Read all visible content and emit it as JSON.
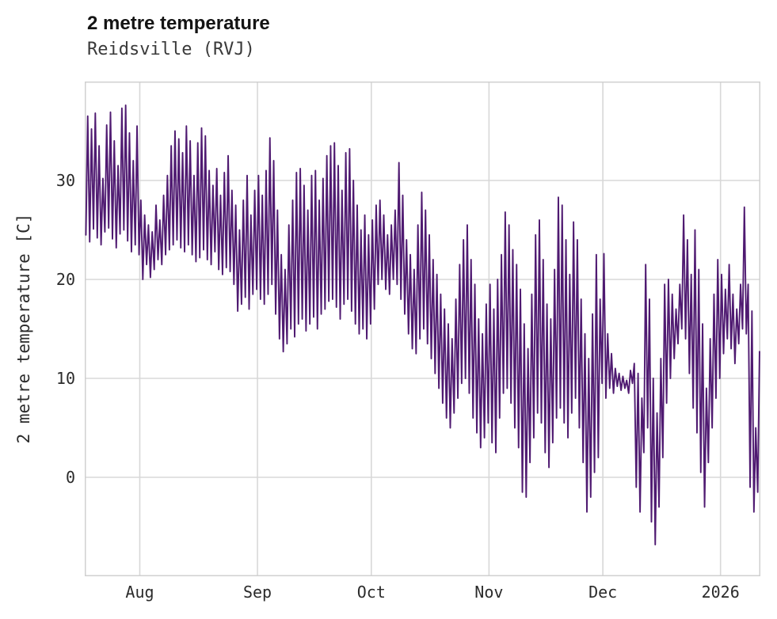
{
  "header": {
    "title": "2 metre temperature",
    "subtitle": "Reidsville (RVJ)"
  },
  "chart_data": {
    "type": "line",
    "title": "2 metre temperature",
    "subtitle": "Reidsville (RVJ)",
    "xlabel": "",
    "ylabel": "2 metre temperature [C]",
    "ylim": [
      -10,
      40
    ],
    "yticks": [
      0,
      10,
      20,
      30
    ],
    "grid": true,
    "legend": false,
    "line_color": "#4f1a71",
    "grid_color": "#d8d8d8",
    "border_color": "#d0d0d0",
    "x_start": "mid-July",
    "x_end": "mid-January 2026",
    "days_total": 178,
    "xticks": [
      {
        "label": "Aug",
        "day": 14
      },
      {
        "label": "Sep",
        "day": 45
      },
      {
        "label": "Oct",
        "day": 75
      },
      {
        "label": "Nov",
        "day": 106
      },
      {
        "label": "Dec",
        "day": 136
      },
      {
        "label": "2026",
        "day": 167
      }
    ],
    "series_name": "2 metre temperature (daily min/max, degrees C)",
    "daily_min_max": [
      [
        24.5,
        36.5
      ],
      [
        23.8,
        35.2
      ],
      [
        25.1,
        36.8
      ],
      [
        24.2,
        33.5
      ],
      [
        23.5,
        30.2
      ],
      [
        24.8,
        35.6
      ],
      [
        25.2,
        36.9
      ],
      [
        24.1,
        34.0
      ],
      [
        23.2,
        31.5
      ],
      [
        24.6,
        37.3
      ],
      [
        25.0,
        37.6
      ],
      [
        23.9,
        34.8
      ],
      [
        22.8,
        32.0
      ],
      [
        23.5,
        35.5
      ],
      [
        22.5,
        28.0
      ],
      [
        20.0,
        26.5
      ],
      [
        21.5,
        25.5
      ],
      [
        20.2,
        24.8
      ],
      [
        21.0,
        27.5
      ],
      [
        22.0,
        26.0
      ],
      [
        21.5,
        28.5
      ],
      [
        22.5,
        30.5
      ],
      [
        23.0,
        33.5
      ],
      [
        23.5,
        35.0
      ],
      [
        24.0,
        34.2
      ],
      [
        23.2,
        32.8
      ],
      [
        22.8,
        35.5
      ],
      [
        23.5,
        34.0
      ],
      [
        22.5,
        30.5
      ],
      [
        21.8,
        33.8
      ],
      [
        22.2,
        35.3
      ],
      [
        23.0,
        34.5
      ],
      [
        22.0,
        31.0
      ],
      [
        21.5,
        29.5
      ],
      [
        22.8,
        31.2
      ],
      [
        21.0,
        28.5
      ],
      [
        20.5,
        30.8
      ],
      [
        21.2,
        32.5
      ],
      [
        20.8,
        29.0
      ],
      [
        19.5,
        27.5
      ],
      [
        16.8,
        25.0
      ],
      [
        17.5,
        28.0
      ],
      [
        18.2,
        30.5
      ],
      [
        17.0,
        26.5
      ],
      [
        18.5,
        29.0
      ],
      [
        19.0,
        30.5
      ],
      [
        18.0,
        28.5
      ],
      [
        17.5,
        31.0
      ],
      [
        18.5,
        34.3
      ],
      [
        19.5,
        32.0
      ],
      [
        16.5,
        27.0
      ],
      [
        14.0,
        22.5
      ],
      [
        12.7,
        21.0
      ],
      [
        13.5,
        25.5
      ],
      [
        15.0,
        28.0
      ],
      [
        14.2,
        30.8
      ],
      [
        15.5,
        31.2
      ],
      [
        16.0,
        29.5
      ],
      [
        14.8,
        27.0
      ],
      [
        15.5,
        30.5
      ],
      [
        16.2,
        31.0
      ],
      [
        15.0,
        28.0
      ],
      [
        16.5,
        30.2
      ],
      [
        17.0,
        32.5
      ],
      [
        17.8,
        33.5
      ],
      [
        18.0,
        33.8
      ],
      [
        17.2,
        31.5
      ],
      [
        16.0,
        29.0
      ],
      [
        17.5,
        32.8
      ],
      [
        18.0,
        33.2
      ],
      [
        16.8,
        30.0
      ],
      [
        15.5,
        27.5
      ],
      [
        14.5,
        25.0
      ],
      [
        15.0,
        26.5
      ],
      [
        14.0,
        24.5
      ],
      [
        15.5,
        26.0
      ],
      [
        17.0,
        27.5
      ],
      [
        19.5,
        28.0
      ],
      [
        20.0,
        26.5
      ],
      [
        19.0,
        24.5
      ],
      [
        18.5,
        25.5
      ],
      [
        20.0,
        27.0
      ],
      [
        19.5,
        31.8
      ],
      [
        18.0,
        28.5
      ],
      [
        16.5,
        24.0
      ],
      [
        14.5,
        22.5
      ],
      [
        13.0,
        21.0
      ],
      [
        12.5,
        25.5
      ],
      [
        14.0,
        28.8
      ],
      [
        15.0,
        27.0
      ],
      [
        13.5,
        24.5
      ],
      [
        12.0,
        22.0
      ],
      [
        10.5,
        20.5
      ],
      [
        9.0,
        18.5
      ],
      [
        7.5,
        17.0
      ],
      [
        6.0,
        15.5
      ],
      [
        5.0,
        14.0
      ],
      [
        6.5,
        18.0
      ],
      [
        8.0,
        21.5
      ],
      [
        9.5,
        24.0
      ],
      [
        10.0,
        25.5
      ],
      [
        8.5,
        22.0
      ],
      [
        6.0,
        19.5
      ],
      [
        4.5,
        16.0
      ],
      [
        3.0,
        14.5
      ],
      [
        4.0,
        17.5
      ],
      [
        5.5,
        19.5
      ],
      [
        3.5,
        17.0
      ],
      [
        2.5,
        20.0
      ],
      [
        6.0,
        22.5
      ],
      [
        8.5,
        26.8
      ],
      [
        9.0,
        25.5
      ],
      [
        7.5,
        23.0
      ],
      [
        5.0,
        21.5
      ],
      [
        3.0,
        19.0
      ],
      [
        -1.5,
        15.5
      ],
      [
        -2.0,
        13.0
      ],
      [
        1.5,
        18.5
      ],
      [
        4.0,
        24.5
      ],
      [
        6.5,
        26.0
      ],
      [
        5.5,
        22.0
      ],
      [
        2.5,
        17.5
      ],
      [
        1.0,
        16.0
      ],
      [
        3.5,
        21.0
      ],
      [
        6.0,
        28.3
      ],
      [
        7.0,
        27.5
      ],
      [
        5.5,
        24.0
      ],
      [
        4.0,
        20.5
      ],
      [
        6.5,
        25.8
      ],
      [
        8.0,
        24.0
      ],
      [
        5.0,
        18.0
      ],
      [
        1.5,
        14.5
      ],
      [
        -3.5,
        12.0
      ],
      [
        -2.0,
        16.5
      ],
      [
        0.5,
        22.5
      ],
      [
        2.0,
        18.0
      ],
      [
        9.5,
        22.6
      ],
      [
        8.0,
        14.5
      ],
      [
        9.0,
        12.5
      ],
      [
        8.5,
        11.0
      ],
      [
        9.2,
        10.5
      ],
      [
        8.8,
        10.2
      ],
      [
        9.0,
        9.8
      ],
      [
        8.5,
        10.8
      ],
      [
        9.5,
        11.5
      ],
      [
        -1.0,
        10.5
      ],
      [
        -3.5,
        8.0
      ],
      [
        2.5,
        21.5
      ],
      [
        5.0,
        18.0
      ],
      [
        -4.5,
        10.0
      ],
      [
        -6.8,
        6.5
      ],
      [
        -3.0,
        12.0
      ],
      [
        2.0,
        19.5
      ],
      [
        7.5,
        20.0
      ],
      [
        10.0,
        18.5
      ],
      [
        12.0,
        17.0
      ],
      [
        13.5,
        19.5
      ],
      [
        15.0,
        26.5
      ],
      [
        14.0,
        24.0
      ],
      [
        10.5,
        20.5
      ],
      [
        7.0,
        25.0
      ],
      [
        4.5,
        21.0
      ],
      [
        0.5,
        15.5
      ],
      [
        -3.0,
        9.0
      ],
      [
        1.5,
        14.0
      ],
      [
        5.0,
        18.5
      ],
      [
        8.0,
        22.0
      ],
      [
        10.0,
        20.5
      ],
      [
        12.5,
        19.0
      ],
      [
        14.0,
        21.5
      ],
      [
        13.0,
        18.5
      ],
      [
        11.5,
        17.0
      ],
      [
        13.5,
        19.5
      ],
      [
        15.0,
        27.3
      ],
      [
        14.5,
        19.5
      ],
      [
        -1.0,
        16.8
      ],
      [
        -3.5,
        5.0
      ],
      [
        -1.5,
        12.7
      ]
    ]
  }
}
